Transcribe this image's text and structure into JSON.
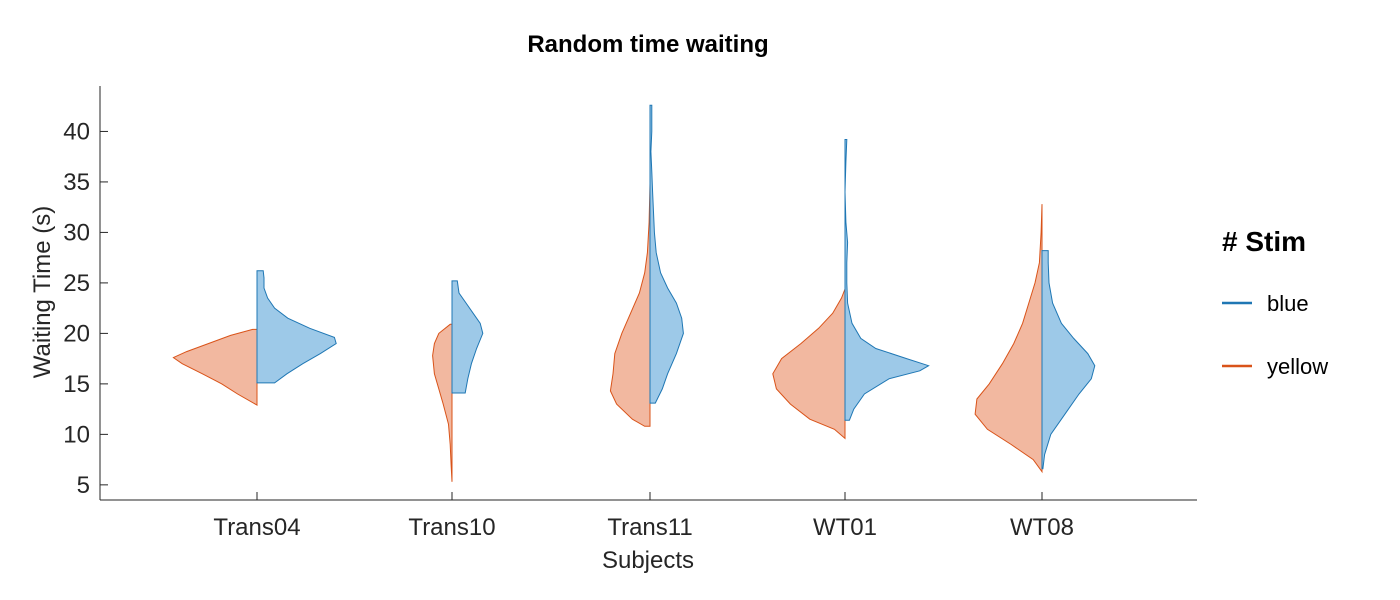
{
  "chart_data": {
    "type": "violin",
    "title": "Random time waiting",
    "xlabel": "Subjects",
    "ylabel": "Waiting Time (s)",
    "ylim": [
      3.5,
      44.5
    ],
    "yticks": [
      5,
      10,
      15,
      20,
      25,
      30,
      35,
      40
    ],
    "categories": [
      "Trans04",
      "Trans10",
      "Trans11",
      "WT01",
      "WT08"
    ],
    "legend": {
      "title": "# Stim",
      "placement": "right",
      "entries": [
        {
          "label": "blue",
          "color": "#1f77b4",
          "fill": "#9dc9e8"
        },
        {
          "label": "yellow",
          "color": "#d95319",
          "fill": "#f2b8a0"
        }
      ]
    },
    "series": [
      {
        "name": "yellow",
        "side": "left",
        "color": "#d95319",
        "fill": "#f2b8a0",
        "violins": [
          {
            "category": "Trans04",
            "min": 12.9,
            "max": 20.4,
            "profile": [
              [
                12.9,
                0.0
              ],
              [
                14.0,
                0.22
              ],
              [
                15.0,
                0.4
              ],
              [
                16.0,
                0.62
              ],
              [
                17.0,
                0.85
              ],
              [
                17.6,
                0.95
              ],
              [
                18.2,
                0.8
              ],
              [
                19.0,
                0.55
              ],
              [
                19.8,
                0.3
              ],
              [
                20.4,
                0.05
              ]
            ]
          },
          {
            "category": "Trans10",
            "min": 5.3,
            "max": 20.9,
            "profile": [
              [
                5.3,
                0.0
              ],
              [
                7.0,
                0.01
              ],
              [
                9.0,
                0.02
              ],
              [
                11.0,
                0.04
              ],
              [
                13.0,
                0.1
              ],
              [
                14.5,
                0.15
              ],
              [
                16.0,
                0.2
              ],
              [
                17.8,
                0.22
              ],
              [
                19.0,
                0.2
              ],
              [
                20.0,
                0.15
              ],
              [
                20.9,
                0.02
              ]
            ]
          },
          {
            "category": "Trans11",
            "min": 10.8,
            "max": 34.8,
            "profile": [
              [
                10.8,
                0.06
              ],
              [
                11.5,
                0.2
              ],
              [
                13.0,
                0.38
              ],
              [
                14.3,
                0.45
              ],
              [
                16.0,
                0.42
              ],
              [
                18.0,
                0.4
              ],
              [
                20.0,
                0.32
              ],
              [
                22.0,
                0.22
              ],
              [
                24.0,
                0.12
              ],
              [
                26.0,
                0.06
              ],
              [
                28.0,
                0.03
              ],
              [
                31.0,
                0.01
              ],
              [
                34.8,
                0.0
              ]
            ]
          },
          {
            "category": "WT01",
            "min": 9.6,
            "max": 24.4,
            "profile": [
              [
                9.6,
                0.0
              ],
              [
                10.5,
                0.12
              ],
              [
                11.5,
                0.4
              ],
              [
                13.0,
                0.62
              ],
              [
                14.5,
                0.78
              ],
              [
                16.0,
                0.82
              ],
              [
                17.5,
                0.72
              ],
              [
                19.0,
                0.5
              ],
              [
                20.5,
                0.3
              ],
              [
                22.0,
                0.14
              ],
              [
                23.5,
                0.04
              ],
              [
                24.4,
                0.0
              ]
            ]
          },
          {
            "category": "WT08",
            "min": 6.3,
            "max": 32.8,
            "profile": [
              [
                6.3,
                0.0
              ],
              [
                7.5,
                0.1
              ],
              [
                9.0,
                0.35
              ],
              [
                10.5,
                0.62
              ],
              [
                12.0,
                0.76
              ],
              [
                13.5,
                0.74
              ],
              [
                15.0,
                0.6
              ],
              [
                17.0,
                0.45
              ],
              [
                19.0,
                0.32
              ],
              [
                21.0,
                0.22
              ],
              [
                23.0,
                0.15
              ],
              [
                25.0,
                0.08
              ],
              [
                27.0,
                0.03
              ],
              [
                30.0,
                0.01
              ],
              [
                32.8,
                0.0
              ]
            ]
          }
        ]
      },
      {
        "name": "blue",
        "side": "right",
        "color": "#1f77b4",
        "fill": "#9dc9e8",
        "violins": [
          {
            "category": "Trans04",
            "min": 15.1,
            "max": 26.2,
            "profile": [
              [
                15.1,
                0.2
              ],
              [
                16.0,
                0.34
              ],
              [
                17.0,
                0.52
              ],
              [
                18.0,
                0.72
              ],
              [
                19.0,
                0.9
              ],
              [
                19.6,
                0.88
              ],
              [
                20.5,
                0.6
              ],
              [
                21.5,
                0.35
              ],
              [
                22.5,
                0.2
              ],
              [
                23.5,
                0.12
              ],
              [
                24.5,
                0.08
              ],
              [
                25.5,
                0.08
              ],
              [
                26.2,
                0.07
              ]
            ]
          },
          {
            "category": "Trans10",
            "min": 14.1,
            "max": 25.2,
            "profile": [
              [
                14.1,
                0.15
              ],
              [
                15.5,
                0.18
              ],
              [
                17.0,
                0.22
              ],
              [
                18.5,
                0.28
              ],
              [
                20.0,
                0.35
              ],
              [
                21.0,
                0.32
              ],
              [
                22.0,
                0.24
              ],
              [
                23.0,
                0.16
              ],
              [
                24.0,
                0.08
              ],
              [
                25.2,
                0.06
              ]
            ]
          },
          {
            "category": "Trans11",
            "min": 13.1,
            "max": 42.6,
            "profile": [
              [
                13.1,
                0.06
              ],
              [
                14.5,
                0.14
              ],
              [
                16.0,
                0.2
              ],
              [
                18.0,
                0.3
              ],
              [
                20.0,
                0.38
              ],
              [
                21.5,
                0.36
              ],
              [
                23.0,
                0.3
              ],
              [
                24.5,
                0.2
              ],
              [
                26.0,
                0.12
              ],
              [
                28.0,
                0.07
              ],
              [
                30.0,
                0.05
              ],
              [
                32.0,
                0.04
              ],
              [
                34.0,
                0.03
              ],
              [
                36.0,
                0.02
              ],
              [
                38.0,
                0.01
              ],
              [
                40.0,
                0.02
              ],
              [
                42.6,
                0.02
              ]
            ]
          },
          {
            "category": "WT01",
            "min": 11.4,
            "max": 39.2,
            "profile": [
              [
                11.4,
                0.05
              ],
              [
                12.5,
                0.1
              ],
              [
                14.0,
                0.22
              ],
              [
                15.5,
                0.5
              ],
              [
                16.3,
                0.85
              ],
              [
                16.8,
                0.95
              ],
              [
                17.5,
                0.7
              ],
              [
                18.5,
                0.35
              ],
              [
                19.5,
                0.18
              ],
              [
                21.0,
                0.08
              ],
              [
                23.0,
                0.03
              ],
              [
                25.0,
                0.02
              ],
              [
                27.0,
                0.02
              ],
              [
                29.0,
                0.03
              ],
              [
                31.0,
                0.01
              ],
              [
                34.0,
                0.0
              ],
              [
                37.0,
                0.01
              ],
              [
                39.2,
                0.02
              ]
            ]
          },
          {
            "category": "WT08",
            "min": 6.6,
            "max": 28.2,
            "profile": [
              [
                6.6,
                0.01
              ],
              [
                8.0,
                0.03
              ],
              [
                10.0,
                0.1
              ],
              [
                12.0,
                0.26
              ],
              [
                14.0,
                0.42
              ],
              [
                15.5,
                0.56
              ],
              [
                16.8,
                0.6
              ],
              [
                18.0,
                0.52
              ],
              [
                19.5,
                0.36
              ],
              [
                21.0,
                0.22
              ],
              [
                23.0,
                0.12
              ],
              [
                25.0,
                0.08
              ],
              [
                27.0,
                0.07
              ],
              [
                28.2,
                0.07
              ]
            ]
          }
        ]
      }
    ]
  }
}
